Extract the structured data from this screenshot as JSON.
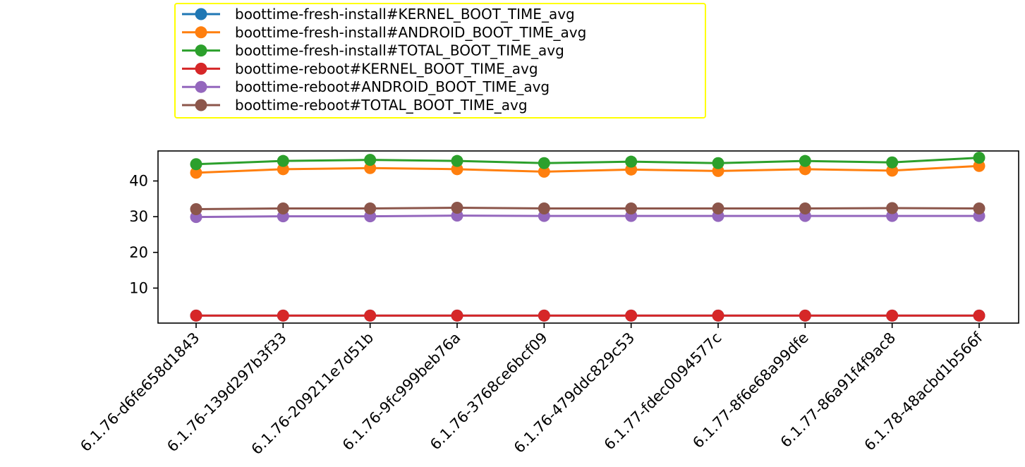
{
  "chart_data": {
    "type": "line",
    "categories": [
      "6.1.76-d6fe658d1843",
      "6.1.76-139d297b3f33",
      "6.1.76-209211e7d51b",
      "6.1.76-9fc999beb76a",
      "6.1.76-3768ce6bcf09",
      "6.1.76-479ddc829c53",
      "6.1.77-fdec0094577c",
      "6.1.77-8f6e68a99dfe",
      "6.1.77-86a91f4f9ac8",
      "6.1.78-48acbd1b566f"
    ],
    "series": [
      {
        "name": "boottime-fresh-install#KERNEL_BOOT_TIME_avg",
        "color": "#1f77b4",
        "values": [
          2.3,
          2.3,
          2.3,
          2.3,
          2.3,
          2.3,
          2.3,
          2.3,
          2.3,
          2.3
        ]
      },
      {
        "name": "boottime-fresh-install#ANDROID_BOOT_TIME_avg",
        "color": "#ff7f0e",
        "values": [
          42.3,
          43.3,
          43.6,
          43.3,
          42.6,
          43.2,
          42.8,
          43.3,
          42.9,
          44.2
        ]
      },
      {
        "name": "boottime-fresh-install#TOTAL_BOOT_TIME_avg",
        "color": "#2ca02c",
        "values": [
          44.7,
          45.6,
          45.9,
          45.6,
          45.0,
          45.4,
          45.0,
          45.6,
          45.2,
          46.5
        ]
      },
      {
        "name": "boottime-reboot#KERNEL_BOOT_TIME_avg",
        "color": "#d62728",
        "values": [
          2.3,
          2.3,
          2.3,
          2.3,
          2.3,
          2.3,
          2.3,
          2.3,
          2.3,
          2.3
        ]
      },
      {
        "name": "boottime-reboot#ANDROID_BOOT_TIME_avg",
        "color": "#9467bd",
        "values": [
          29.9,
          30.1,
          30.1,
          30.3,
          30.2,
          30.2,
          30.2,
          30.2,
          30.2,
          30.2
        ]
      },
      {
        "name": "boottime-reboot#TOTAL_BOOT_TIME_avg",
        "color": "#8c564b",
        "values": [
          32.1,
          32.3,
          32.3,
          32.5,
          32.3,
          32.3,
          32.3,
          32.3,
          32.4,
          32.3
        ]
      }
    ],
    "yticks": [
      10,
      20,
      30,
      40
    ],
    "ylim": [
      0.2,
      48.4
    ],
    "xlabel": "",
    "ylabel": "",
    "title": "",
    "grid": false,
    "legend": {
      "placement": "above",
      "border_color": "#ffff00"
    }
  }
}
